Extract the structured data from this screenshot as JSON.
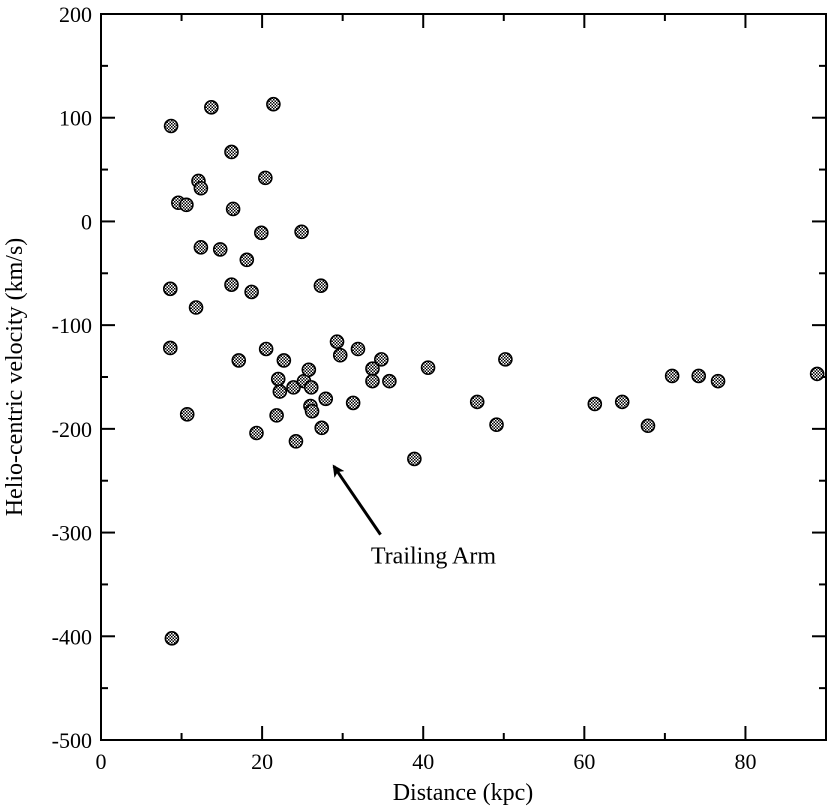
{
  "chart_data": {
    "type": "scatter",
    "title": "",
    "xlabel": "Distance (kpc)",
    "ylabel": "Helio-centric velocity (km/s)",
    "xlim": [
      0,
      90
    ],
    "ylim": [
      -500,
      200
    ],
    "x_ticks": [
      0,
      20,
      40,
      60,
      80
    ],
    "y_ticks": [
      -500,
      -400,
      -300,
      -200,
      -100,
      0,
      100,
      200
    ],
    "x_tick_labels": [
      "0",
      "20",
      "40",
      "60",
      "80"
    ],
    "y_tick_labels": [
      "-500",
      "-400",
      "-300",
      "-200",
      "-100",
      "0",
      "100",
      "200"
    ],
    "grid": false,
    "marker": "hatched-circle",
    "points": [
      [
        8.7,
        92
      ],
      [
        8.8,
        -402
      ],
      [
        8.6,
        -65
      ],
      [
        8.6,
        -122
      ],
      [
        9.6,
        18
      ],
      [
        10.6,
        16
      ],
      [
        10.7,
        -186
      ],
      [
        11.8,
        -83
      ],
      [
        12.1,
        39
      ],
      [
        12.4,
        32
      ],
      [
        12.4,
        -25
      ],
      [
        13.7,
        110
      ],
      [
        14.8,
        -27
      ],
      [
        16.2,
        67
      ],
      [
        16.4,
        12
      ],
      [
        16.2,
        -61
      ],
      [
        17.1,
        -134
      ],
      [
        18.1,
        -37
      ],
      [
        18.7,
        -68
      ],
      [
        19.3,
        -204
      ],
      [
        19.9,
        -11
      ],
      [
        20.4,
        42
      ],
      [
        20.5,
        -123
      ],
      [
        21.4,
        113
      ],
      [
        21.8,
        -187
      ],
      [
        22.0,
        -152
      ],
      [
        22.2,
        -164
      ],
      [
        22.7,
        -134
      ],
      [
        23.9,
        -160
      ],
      [
        24.2,
        -212
      ],
      [
        24.9,
        -10
      ],
      [
        25.2,
        -154
      ],
      [
        25.8,
        -143
      ],
      [
        26.1,
        -160
      ],
      [
        26.0,
        -178
      ],
      [
        26.2,
        -183
      ],
      [
        27.3,
        -62
      ],
      [
        27.4,
        -199
      ],
      [
        27.9,
        -171
      ],
      [
        29.3,
        -116
      ],
      [
        29.7,
        -129
      ],
      [
        31.3,
        -175
      ],
      [
        31.9,
        -123
      ],
      [
        33.7,
        -142
      ],
      [
        33.7,
        -154
      ],
      [
        34.8,
        -133
      ],
      [
        35.8,
        -154
      ],
      [
        38.9,
        -229
      ],
      [
        40.6,
        -141
      ],
      [
        46.7,
        -174
      ],
      [
        49.1,
        -196
      ],
      [
        50.2,
        -133
      ],
      [
        61.3,
        -176
      ],
      [
        64.7,
        -174
      ],
      [
        67.9,
        -197
      ],
      [
        70.9,
        -149
      ],
      [
        74.2,
        -149
      ],
      [
        76.6,
        -154
      ],
      [
        88.9,
        -147
      ]
    ],
    "annotations": [
      {
        "text": "Trailing Arm",
        "text_at": [
          33.5,
          -330
        ],
        "arrow_from": [
          34.7,
          -302
        ],
        "arrow_to": [
          28.9,
          -236
        ]
      }
    ]
  }
}
